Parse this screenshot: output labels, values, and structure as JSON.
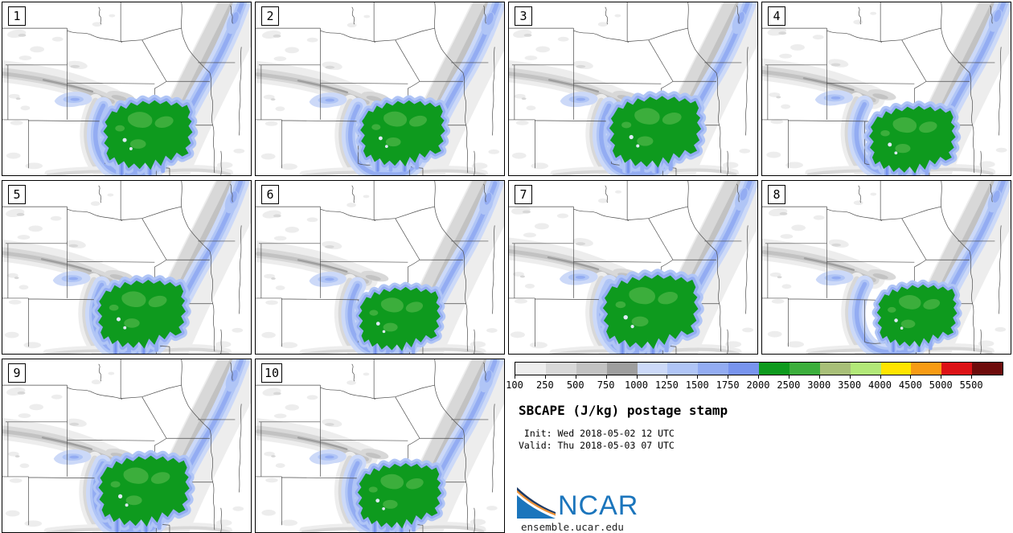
{
  "product": {
    "title": "SBCAPE (J/kg) postage stamp",
    "init_line": " Init: Wed 2018-05-02 12 UTC",
    "valid_line": "Valid: Thu 2018-05-03 07 UTC"
  },
  "panels": [
    {
      "label": "1"
    },
    {
      "label": "2"
    },
    {
      "label": "3"
    },
    {
      "label": "4"
    },
    {
      "label": "5"
    },
    {
      "label": "6"
    },
    {
      "label": "7"
    },
    {
      "label": "8"
    },
    {
      "label": "9"
    },
    {
      "label": "10"
    }
  ],
  "legend": {
    "ticks": [
      "100",
      "250",
      "500",
      "750",
      "1000",
      "1250",
      "1500",
      "1750",
      "2000",
      "2500",
      "3000",
      "3500",
      "4000",
      "4500",
      "5000",
      "5500"
    ],
    "colors": [
      "#ededed",
      "#d8d8d8",
      "#c2c2c2",
      "#9e9e9e",
      "#ccd9f8",
      "#b0c5f6",
      "#93acf2",
      "#7894ee",
      "#0e9a1e",
      "#3cae3c",
      "#a8bf78",
      "#b2e878",
      "#ffe400",
      "#f79b14",
      "#dc1216",
      "#6e0c0c"
    ]
  },
  "logo": {
    "wordmark": "NCAR",
    "url": "ensemble.ucar.edu",
    "blue": "#1b75bc",
    "navy": "#1c3a66",
    "orange": "#ee9338"
  }
}
